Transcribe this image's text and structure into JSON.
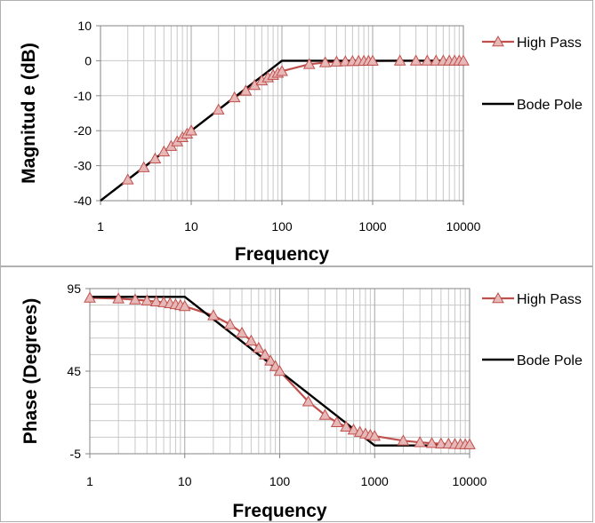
{
  "colors": {
    "high_pass": "#c0504d",
    "high_pass_marker_fill": "#e6b9b8",
    "bode_pole": "#000000",
    "grid": "#c8c8c8"
  },
  "chart_data": [
    {
      "type": "line",
      "xscale": "log",
      "xlabel": "Frequency",
      "ylabel": "Magnitud e (dB)",
      "xlim": [
        1,
        10000
      ],
      "ylim": [
        -40,
        10
      ],
      "xticks": [
        "1",
        "10",
        "100",
        "1000",
        "10000"
      ],
      "yticks": [
        "10",
        "0",
        "-10",
        "-20",
        "-30",
        "-40"
      ],
      "ytick_values": [
        10,
        0,
        -10,
        -20,
        -30,
        -40
      ],
      "grid": true,
      "legend": "right",
      "series": [
        {
          "name": "High Pass",
          "marker": "triangle",
          "x": [
            2,
            3,
            4,
            5,
            6,
            7,
            8,
            9,
            10,
            20,
            30,
            40,
            50,
            60,
            70,
            80,
            90,
            100,
            200,
            300,
            400,
            500,
            600,
            700,
            800,
            900,
            1000,
            2000,
            3000,
            4000,
            5000,
            6000,
            7000,
            8000,
            9000,
            10000
          ],
          "y": [
            -34,
            -30.5,
            -28,
            -26,
            -24.4,
            -23.1,
            -21.9,
            -20.9,
            -20,
            -14,
            -10.5,
            -8.6,
            -7,
            -5.7,
            -4.8,
            -4.1,
            -3.5,
            -3,
            -1,
            -0.5,
            -0.3,
            -0.2,
            -0.15,
            -0.1,
            -0.08,
            -0.06,
            -0.05,
            0,
            0,
            0,
            0,
            0,
            0,
            0,
            0,
            0
          ]
        },
        {
          "name": "Bode Pole",
          "marker": "none",
          "x": [
            1,
            100,
            10000
          ],
          "y": [
            -40,
            0,
            0
          ]
        }
      ]
    },
    {
      "type": "line",
      "xscale": "log",
      "xlabel": "Frequency",
      "ylabel": "Phase (Degrees)",
      "xlim": [
        1,
        10000
      ],
      "ylim": [
        -5,
        95
      ],
      "xticks": [
        "1",
        "10",
        "100",
        "1000",
        "10000"
      ],
      "yticks": [
        "95",
        "45",
        "-5"
      ],
      "ytick_values": [
        95,
        45,
        -5
      ],
      "grid": true,
      "legend": "right",
      "series": [
        {
          "name": "High Pass",
          "marker": "triangle",
          "x": [
            1,
            2,
            3,
            4,
            5,
            6,
            7,
            8,
            9,
            10,
            20,
            30,
            40,
            50,
            60,
            70,
            80,
            90,
            100,
            200,
            300,
            400,
            500,
            600,
            700,
            800,
            900,
            1000,
            2000,
            3000,
            4000,
            5000,
            6000,
            7000,
            8000,
            9000,
            10000
          ],
          "y": [
            89.4,
            88.9,
            88.3,
            87.7,
            87.1,
            86.6,
            86,
            85.4,
            84.9,
            84.3,
            78.7,
            73.3,
            68.2,
            63.4,
            59,
            55,
            51.3,
            48,
            45,
            26.6,
            18.4,
            14,
            11.3,
            9.5,
            8.1,
            7.1,
            6.3,
            5.7,
            2.9,
            1.9,
            1.4,
            1.1,
            1,
            0.8,
            0.7,
            0.6,
            0.6
          ]
        },
        {
          "name": "Bode Pole",
          "marker": "none",
          "x": [
            1,
            10,
            1000,
            10000
          ],
          "y": [
            90,
            90,
            0,
            0
          ]
        }
      ]
    }
  ]
}
